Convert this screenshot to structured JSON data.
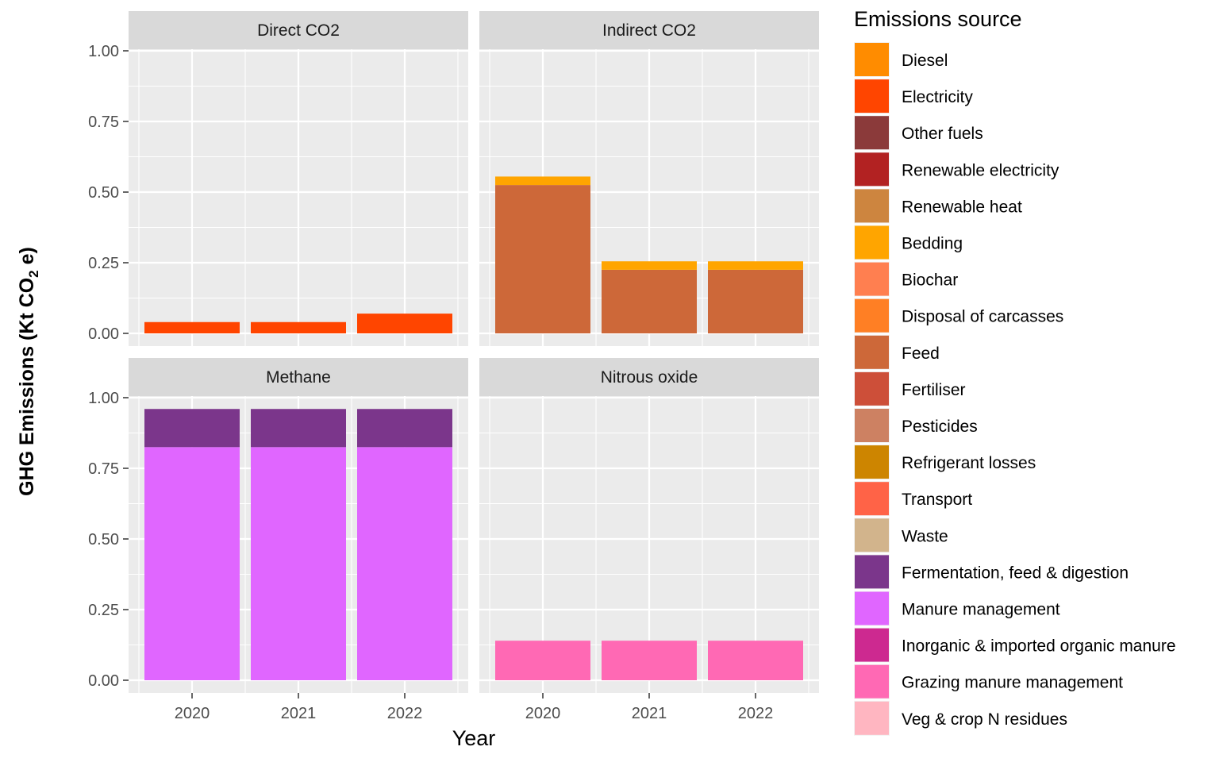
{
  "chart_data": {
    "type": "bar",
    "layout": "facet_wrap 2x2, stacked bars",
    "xlabel": "Year",
    "ylabel": "GHG Emissions (Kt CO2 e)",
    "ylim": [
      0,
      1.0
    ],
    "yticks": [
      "0.00",
      "0.25",
      "0.50",
      "0.75",
      "1.00"
    ],
    "categories": [
      "2020",
      "2021",
      "2022"
    ],
    "grid": true,
    "legend_position": "right",
    "legend": {
      "title": "Emissions source",
      "entries": [
        {
          "label": "Diesel",
          "color": "#FF8C00"
        },
        {
          "label": "Electricity",
          "color": "#FF4500"
        },
        {
          "label": "Other fuels",
          "color": "#8B3A3A"
        },
        {
          "label": "Renewable electricity",
          "color": "#B22222"
        },
        {
          "label": "Renewable heat",
          "color": "#CD853F"
        },
        {
          "label": "Bedding",
          "color": "#FFA500"
        },
        {
          "label": "Biochar",
          "color": "#FF7F50"
        },
        {
          "label": "Disposal of carcasses",
          "color": "#FF7F24"
        },
        {
          "label": "Feed",
          "color": "#CD6839"
        },
        {
          "label": "Fertiliser",
          "color": "#CD4F39"
        },
        {
          "label": "Pesticides",
          "color": "#CD8162"
        },
        {
          "label": "Refrigerant losses",
          "color": "#CD8500"
        },
        {
          "label": "Transport",
          "color": "#FF6347"
        },
        {
          "label": "Waste",
          "color": "#D2B48C"
        },
        {
          "label": "Fermentation, feed & digestion",
          "color": "#7B368B"
        },
        {
          "label": "Manure management",
          "color": "#E066FF"
        },
        {
          "label": "Inorganic & imported organic manure",
          "color": "#CD2990"
        },
        {
          "label": "Grazing manure management",
          "color": "#FF69B4"
        },
        {
          "label": "Veg & crop N residues",
          "color": "#FFB6C1"
        }
      ]
    },
    "facets": [
      {
        "title": "Direct CO2",
        "series": [
          {
            "name": "Electricity",
            "values": [
              0.04,
              0.04,
              0.07
            ]
          }
        ]
      },
      {
        "title": "Indirect CO2",
        "series": [
          {
            "name": "Feed",
            "values": [
              0.525,
              0.225,
              0.225
            ]
          },
          {
            "name": "Bedding",
            "values": [
              0.03,
              0.03,
              0.03
            ]
          }
        ]
      },
      {
        "title": "Methane",
        "series": [
          {
            "name": "Manure management",
            "values": [
              0.825,
              0.825,
              0.825
            ]
          },
          {
            "name": "Fermentation, feed & digestion",
            "values": [
              0.135,
              0.135,
              0.135
            ]
          }
        ]
      },
      {
        "title": "Nitrous oxide",
        "series": [
          {
            "name": "Grazing manure management",
            "values": [
              0.14,
              0.14,
              0.14
            ]
          }
        ]
      }
    ]
  }
}
